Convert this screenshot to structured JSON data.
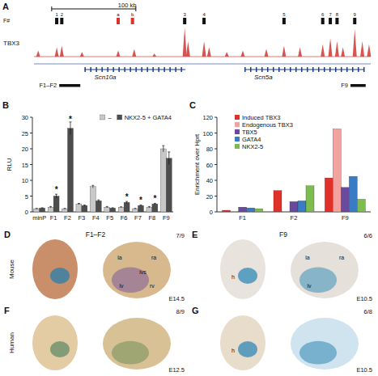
{
  "panel_letters": [
    "A",
    "B",
    "C",
    "D",
    "E",
    "F",
    "G"
  ],
  "panel_a": {
    "scale_bar": "100 kb",
    "scale_bar_kb": [
      21,
      121
    ],
    "track_kb": [
      0,
      400
    ],
    "fragment_label": "F#",
    "track": "TBX3",
    "fragments": [
      {
        "label": "1",
        "kb": 27,
        "color": "#111111"
      },
      {
        "label": "2",
        "kb": 33,
        "color": "#111111"
      },
      {
        "label": "a",
        "kb": 100,
        "color": "#d9342b"
      },
      {
        "label": "b",
        "kb": 117,
        "color": "#d9342b"
      },
      {
        "label": "3",
        "kb": 179,
        "color": "#111111"
      },
      {
        "label": "4",
        "kb": 202,
        "color": "#111111"
      },
      {
        "label": "5",
        "kb": 297,
        "color": "#111111"
      },
      {
        "label": "6",
        "kb": 343,
        "color": "#111111"
      },
      {
        "label": "7",
        "kb": 352,
        "color": "#111111"
      },
      {
        "label": "8",
        "kb": 360,
        "color": "#111111"
      },
      {
        "label": "9",
        "kb": 381,
        "color": "#111111"
      }
    ],
    "peaks": [
      {
        "kb": 5,
        "height": 0.2
      },
      {
        "kb": 27,
        "height": 0.3
      },
      {
        "kb": 33,
        "height": 0.35
      },
      {
        "kb": 57,
        "height": 0.15
      },
      {
        "kb": 100,
        "height": 0.2
      },
      {
        "kb": 119,
        "height": 0.25
      },
      {
        "kb": 143,
        "height": 0.1
      },
      {
        "kb": 179,
        "height": 0.95
      },
      {
        "kb": 183,
        "height": 0.5
      },
      {
        "kb": 202,
        "height": 0.5
      },
      {
        "kb": 208,
        "height": 0.3
      },
      {
        "kb": 229,
        "height": 0.15
      },
      {
        "kb": 248,
        "height": 0.2
      },
      {
        "kb": 276,
        "height": 0.25
      },
      {
        "kb": 297,
        "height": 0.35
      },
      {
        "kb": 316,
        "height": 0.3
      },
      {
        "kb": 343,
        "height": 0.4
      },
      {
        "kb": 352,
        "height": 0.6
      },
      {
        "kb": 360,
        "height": 0.5
      },
      {
        "kb": 367,
        "height": 0.3
      },
      {
        "kb": 381,
        "height": 0.9
      },
      {
        "kb": 390,
        "height": 0.5
      },
      {
        "kb": 398,
        "height": 0.4
      }
    ],
    "genes": [
      {
        "name": "Scn10a",
        "kb": [
          60,
          180
        ]
      },
      {
        "name": "Scn5a",
        "kb": [
          250,
          392
        ]
      }
    ],
    "fragment_groups": [
      {
        "label": "F1–F2",
        "kb": [
          30,
          55
        ]
      },
      {
        "label": "F9",
        "kb": [
          376,
          394
        ]
      }
    ]
  },
  "chart_data": [
    {
      "type": "bar",
      "categories": [
        "minP",
        "F1",
        "F2",
        "F3",
        "F4",
        "F5",
        "F6",
        "F7",
        "F8",
        "F9"
      ],
      "y_label": "RLU",
      "ylim": [
        0,
        30
      ],
      "yticks": [
        0,
        5,
        10,
        15,
        20,
        25,
        30
      ],
      "legend": "top-right",
      "series": [
        {
          "name": "–",
          "color": "#c8c8c8",
          "values": [
            1,
            1.5,
            1,
            2.5,
            8,
            1.5,
            1.5,
            1,
            1.5,
            20
          ],
          "errors": [
            0.1,
            0.2,
            0.1,
            0.2,
            0.4,
            0.2,
            0.1,
            0.1,
            0.2,
            1
          ]
        },
        {
          "name": "NKX2-5 + GATA4",
          "color": "#4d4d4d",
          "values": [
            1.2,
            5,
            26.5,
            2,
            3.5,
            1.2,
            3,
            2,
            2.5,
            17
          ],
          "errors": [
            0.1,
            0.6,
            2,
            0.2,
            0.3,
            0.1,
            0.3,
            0.2,
            0.2,
            2
          ]
        }
      ],
      "annotations": [
        null,
        "*",
        "*",
        null,
        null,
        null,
        "*",
        "*",
        "*",
        null
      ]
    },
    {
      "type": "bar",
      "categories": [
        "F1",
        "F2",
        "F9"
      ],
      "y_label": "Enrichment over Hprt",
      "ylim": [
        0,
        120
      ],
      "yticks": [
        0,
        20,
        40,
        60,
        80,
        100,
        120
      ],
      "legend": "top-left",
      "series": [
        {
          "name": "Induced TBX3",
          "color": "#e0302a",
          "values": [
            2,
            27,
            43
          ]
        },
        {
          "name": "Endogenous TBX3",
          "color": "#f2a3a0",
          "values": [
            null,
            null,
            105
          ]
        },
        {
          "name": "TBX5",
          "color": "#6a4a9c",
          "values": [
            6,
            13,
            31
          ]
        },
        {
          "name": "GATA4",
          "color": "#3a7cc4",
          "values": [
            5,
            14,
            45
          ]
        },
        {
          "name": "NKX2-5",
          "color": "#7dbd4f",
          "values": [
            4,
            33,
            16
          ]
        }
      ]
    }
  ],
  "images": [
    {
      "title": "F1–F2",
      "species": "Mouse",
      "ratio": "7/9",
      "stage": "E14.5",
      "heart_labels": [
        "la",
        "ra",
        "ivs",
        "lv",
        "rv"
      ]
    },
    {
      "title": "F9",
      "ratio": "6/6",
      "stage": "E10.5",
      "heart_labels": [
        "la",
        "ra",
        "lv"
      ],
      "embryo_labels": [
        "h"
      ]
    },
    {
      "species": "Human",
      "ratio": "8/9",
      "stage": "E12.5"
    },
    {
      "ratio": "6/8",
      "stage": "E10.5",
      "embryo_labels": [
        "h"
      ]
    }
  ]
}
